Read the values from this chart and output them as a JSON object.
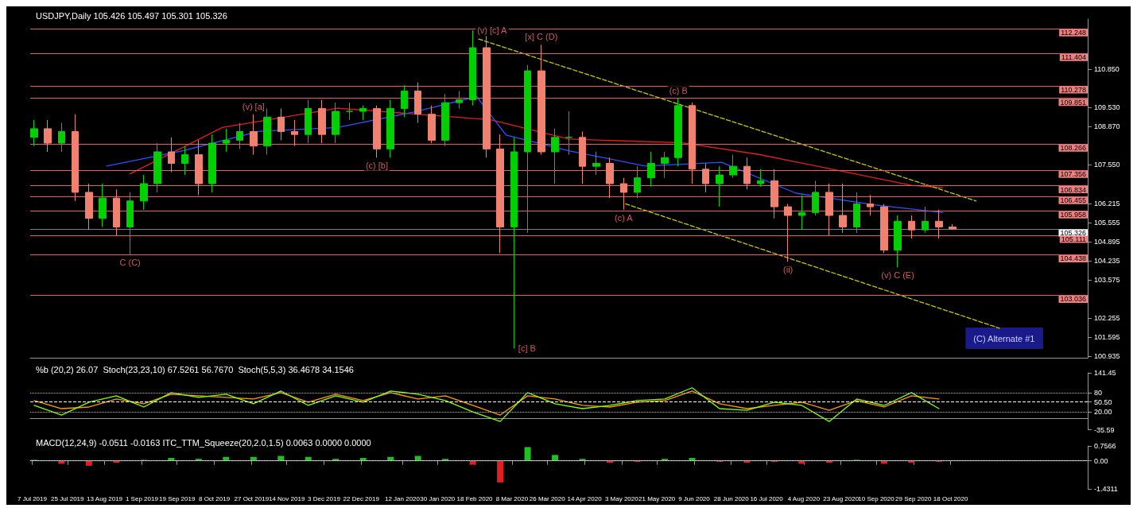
{
  "chart_data": [
    {
      "type": "candlestick",
      "title": "USDJPY,Daily 105.426 105.497 105.301 105.326",
      "x": [
        "2019-07-08",
        "2019-07-15",
        "2019-07-22",
        "2019-07-29",
        "2019-08-05",
        "2019-08-12",
        "2019-08-19",
        "2019-08-26",
        "2019-09-02",
        "2019-09-09",
        "2019-09-16",
        "2019-09-23",
        "2019-09-30",
        "2019-10-07",
        "2019-10-14",
        "2019-10-21",
        "2019-10-28",
        "2019-11-04",
        "2019-11-11",
        "2019-11-18",
        "2019-11-25",
        "2019-12-02",
        "2019-12-09",
        "2019-12-16",
        "2019-12-23",
        "2019-12-30",
        "2020-01-06",
        "2020-01-13",
        "2020-01-20",
        "2020-01-27",
        "2020-02-03",
        "2020-02-10",
        "2020-02-17",
        "2020-02-24",
        "2020-03-02",
        "2020-03-09",
        "2020-03-16",
        "2020-03-23",
        "2020-03-30",
        "2020-04-06",
        "2020-04-13",
        "2020-04-20",
        "2020-04-27",
        "2020-05-04",
        "2020-05-11",
        "2020-05-18",
        "2020-05-25",
        "2020-06-01",
        "2020-06-08",
        "2020-06-15",
        "2020-06-22",
        "2020-06-29",
        "2020-07-06",
        "2020-07-13",
        "2020-07-20",
        "2020-07-27",
        "2020-08-03",
        "2020-08-10",
        "2020-08-17",
        "2020-08-24",
        "2020-08-31",
        "2020-09-07",
        "2020-09-14",
        "2020-09-21",
        "2020-09-28",
        "2020-10-05",
        "2020-10-12",
        "2020-10-19"
      ],
      "ohlc": [
        [
          108.5,
          109.1,
          108.2,
          108.8
        ],
        [
          108.8,
          109.1,
          108.0,
          108.3
        ],
        [
          108.3,
          109.0,
          108.0,
          108.7
        ],
        [
          108.7,
          109.3,
          106.3,
          106.6
        ],
        [
          106.6,
          106.9,
          105.3,
          105.7
        ],
        [
          105.7,
          106.9,
          105.4,
          106.4
        ],
        [
          106.4,
          106.7,
          105.1,
          105.4
        ],
        [
          105.4,
          106.6,
          104.45,
          106.3
        ],
        [
          106.3,
          107.2,
          106.0,
          106.9
        ],
        [
          106.9,
          108.3,
          106.6,
          108.0
        ],
        [
          108.0,
          108.5,
          107.3,
          107.6
        ],
        [
          107.6,
          108.2,
          107.2,
          107.9
        ],
        [
          107.9,
          108.4,
          106.5,
          106.9
        ],
        [
          106.9,
          108.6,
          106.6,
          108.3
        ],
        [
          108.3,
          108.8,
          108.0,
          108.4
        ],
        [
          108.4,
          109.0,
          108.1,
          108.7
        ],
        [
          108.7,
          109.3,
          107.9,
          108.2
        ],
        [
          108.2,
          109.5,
          107.9,
          109.2
        ],
        [
          109.2,
          109.5,
          108.4,
          108.7
        ],
        [
          108.7,
          109.1,
          108.2,
          108.6
        ],
        [
          108.6,
          109.8,
          108.3,
          109.5
        ],
        [
          109.5,
          109.8,
          108.3,
          108.6
        ],
        [
          108.6,
          109.7,
          108.3,
          109.4
        ],
        [
          109.4,
          109.7,
          109.1,
          109.4
        ],
        [
          109.4,
          109.6,
          109.1,
          109.5
        ],
        [
          109.5,
          109.6,
          107.8,
          108.1
        ],
        [
          108.1,
          109.8,
          107.8,
          109.5
        ],
        [
          109.5,
          110.3,
          109.2,
          110.1
        ],
        [
          110.1,
          110.4,
          109.0,
          109.3
        ],
        [
          109.3,
          109.6,
          108.3,
          108.4
        ],
        [
          108.4,
          110.0,
          108.2,
          109.7
        ],
        [
          109.7,
          110.1,
          109.5,
          109.8
        ],
        [
          109.8,
          112.2,
          109.6,
          111.6
        ],
        [
          111.6,
          112.0,
          107.8,
          108.1
        ],
        [
          108.1,
          108.6,
          104.5,
          105.4
        ],
        [
          105.4,
          108.5,
          101.2,
          108.0
        ],
        [
          108.0,
          111.0,
          105.2,
          110.8
        ],
        [
          110.8,
          111.7,
          107.9,
          108.0
        ],
        [
          108.0,
          108.8,
          106.9,
          108.5
        ],
        [
          108.5,
          109.4,
          107.9,
          108.5
        ],
        [
          108.5,
          108.7,
          106.9,
          107.5
        ],
        [
          107.5,
          108.0,
          107.2,
          107.6
        ],
        [
          107.6,
          107.8,
          106.4,
          106.9
        ],
        [
          106.9,
          107.1,
          106.0,
          106.6
        ],
        [
          106.6,
          107.5,
          106.4,
          107.1
        ],
        [
          107.1,
          108.0,
          106.8,
          107.6
        ],
        [
          107.6,
          108.0,
          107.1,
          107.8
        ],
        [
          107.8,
          109.85,
          107.5,
          109.6
        ],
        [
          109.6,
          109.7,
          106.9,
          107.4
        ],
        [
          107.4,
          107.6,
          106.6,
          106.9
        ],
        [
          106.9,
          107.5,
          106.1,
          107.2
        ],
        [
          107.2,
          107.9,
          107.1,
          107.5
        ],
        [
          107.5,
          107.8,
          106.7,
          106.9
        ],
        [
          106.9,
          107.4,
          106.8,
          107.0
        ],
        [
          107.0,
          107.4,
          105.7,
          106.1
        ],
        [
          106.1,
          106.2,
          104.2,
          105.8
        ],
        [
          105.8,
          106.5,
          105.3,
          105.9
        ],
        [
          105.9,
          107.0,
          105.8,
          106.6
        ],
        [
          106.6,
          106.9,
          105.1,
          105.8
        ],
        [
          105.8,
          106.9,
          105.2,
          105.4
        ],
        [
          105.4,
          106.6,
          105.2,
          106.2
        ],
        [
          106.2,
          106.5,
          105.8,
          106.1
        ],
        [
          106.1,
          106.2,
          104.5,
          104.6
        ],
        [
          104.6,
          105.8,
          104.0,
          105.6
        ],
        [
          105.6,
          105.8,
          105.0,
          105.3
        ],
        [
          105.3,
          106.1,
          105.2,
          105.6
        ],
        [
          105.6,
          106.0,
          105.0,
          105.4
        ],
        [
          105.4,
          105.5,
          105.3,
          105.33
        ]
      ],
      "series": [
        {
          "type": "line",
          "color": "#e02020",
          "x": [
            "2019-08-26",
            "2019-10-12",
            "2019-12-10",
            "2020-02-26",
            "2020-04-06",
            "2020-06-03",
            "2020-07-12",
            "2020-08-20",
            "2020-09-28",
            "2020-10-14"
          ],
          "values": [
            107.24,
            108.84,
            109.51,
            109.11,
            108.44,
            108.31,
            107.91,
            107.38,
            106.84,
            106.76
          ]
        },
        {
          "type": "line",
          "color": "#3050ff",
          "x": [
            "2019-08-14",
            "2019-09-22",
            "2019-10-31",
            "2019-12-10",
            "2020-01-18",
            "2020-02-19",
            "2020-03-05",
            "2020-04-06",
            "2020-05-15",
            "2020-06-23",
            "2020-07-31",
            "2020-09-09",
            "2020-10-14"
          ],
          "values": [
            107.51,
            108.04,
            108.71,
            108.84,
            109.38,
            109.91,
            108.58,
            108.04,
            107.51,
            107.64,
            106.57,
            106.17,
            105.9
          ]
        },
        {
          "type": "line",
          "color": "#c8c800",
          "line_style": "dashed",
          "x": [
            "2020-02-20",
            "2020-10-31"
          ],
          "values": [
            111.9,
            106.3
          ]
        },
        {
          "type": "line",
          "color": "#c8c800",
          "line_style": "dashed",
          "x": [
            "2020-05-05",
            "2020-11-12"
          ],
          "values": [
            106.2,
            101.9
          ]
        }
      ],
      "xlim": [
        "2019-07-06",
        "2020-12-27"
      ],
      "ylim": [
        100.88,
        112.59
      ],
      "yticks": [
        {
          "value": 110.85,
          "label": "110.850"
        },
        {
          "value": 109.53,
          "label": "109.530"
        },
        {
          "value": 108.87,
          "label": "108.870"
        },
        {
          "value": 107.55,
          "label": "107.550"
        },
        106.215,
        105.555,
        104.895,
        104.235,
        103.575,
        102.255,
        101.595,
        100.935
      ],
      "ref_lines": [
        {
          "axis": "y",
          "value": 112.248,
          "label": "112.248",
          "color": "#e06060"
        },
        {
          "axis": "y",
          "value": 111.404,
          "label": "111.404",
          "color": "#e06060"
        },
        {
          "axis": "y",
          "value": 110.278,
          "label": "110.278",
          "color": "#e06060"
        },
        {
          "axis": "y",
          "value": 109.851,
          "label": "109.851",
          "color": "#e06060"
        },
        {
          "axis": "y",
          "value": 108.266,
          "label": "108.266",
          "color": "#e06060"
        },
        {
          "axis": "y",
          "value": 107.356,
          "label": "107.356",
          "color": "#e06060"
        },
        {
          "axis": "y",
          "value": 106.834,
          "label": "106.834",
          "color": "#e06060"
        },
        {
          "axis": "y",
          "value": 106.455,
          "label": "106.455",
          "color": "#e06060"
        },
        {
          "axis": "y",
          "value": 105.958,
          "label": "105.958",
          "color": "#e06060"
        },
        {
          "axis": "y",
          "value": 105.326,
          "label": "105.326",
          "color": "#708090"
        },
        {
          "axis": "y",
          "value": 105.111,
          "label": "105.111",
          "color": "#e06060"
        },
        {
          "axis": "y",
          "value": 104.438,
          "label": "104.438",
          "color": "#e06060"
        },
        {
          "axis": "y",
          "value": 103.036,
          "label": "103.036",
          "color": "#e06060"
        }
      ],
      "annotations": [
        {
          "text": "C (C)",
          "x": "2019-08-26",
          "y": 104.45
        },
        {
          "text": "(v) [a]",
          "x": "2019-10-28",
          "y": 109.3
        },
        {
          "text": "(c) [b]",
          "x": "2019-12-30",
          "y": 107.8
        },
        {
          "text": "(v) [c] A",
          "x": "2020-02-17",
          "y": 112.2
        },
        {
          "text": "[c] B",
          "x": "2020-03-09",
          "y": 101.2
        },
        {
          "text": "[x] C (D)",
          "x": "2020-03-23",
          "y": 111.7
        },
        {
          "text": "(c) A",
          "x": "2020-05-04",
          "y": 106.0
        },
        {
          "text": "(c) B",
          "x": "2020-06-01",
          "y": 109.85
        },
        {
          "text": "(ii)",
          "x": "2020-07-27",
          "y": 104.2
        },
        {
          "text": "(v) C (E)",
          "x": "2020-09-21",
          "y": 104.0
        },
        "(C) Alternate #1"
      ],
      "tick_labels": "y"
    },
    {
      "type": "line",
      "title": "%b (20,2) 26.07  Stoch(23,23,10) 67.5261 56.7670  Stoch(5,5,3) 36.4678 34.1546",
      "x": [
        "2019-07-08",
        "2019-07-22",
        "2019-08-05",
        "2019-08-19",
        "2019-09-02",
        "2019-09-16",
        "2019-09-30",
        "2019-10-14",
        "2019-10-28",
        "2019-11-11",
        "2019-11-25",
        "2019-12-09",
        "2019-12-23",
        "2020-01-06",
        "2020-01-20",
        "2020-02-03",
        "2020-02-17",
        "2020-03-02",
        "2020-03-16",
        "2020-03-30",
        "2020-04-13",
        "2020-04-27",
        "2020-05-11",
        "2020-05-25",
        "2020-06-08",
        "2020-06-22",
        "2020-07-06",
        "2020-07-20",
        "2020-08-03",
        "2020-08-17",
        "2020-08-31",
        "2020-09-14",
        "2020-09-28",
        "2020-10-12"
      ],
      "series": [
        {
          "color": "#ff9900",
          "values": [
            55,
            30,
            35,
            60,
            45,
            75,
            70,
            65,
            60,
            80,
            50,
            75,
            55,
            80,
            60,
            70,
            40,
            10,
            70,
            60,
            40,
            35,
            50,
            55,
            85,
            45,
            30,
            40,
            50,
            25,
            55,
            35,
            70,
            60
          ]
        },
        {
          "color": "#80ff00",
          "values": [
            40,
            10,
            50,
            70,
            35,
            80,
            65,
            75,
            45,
            85,
            40,
            70,
            50,
            85,
            75,
            55,
            20,
            -10,
            80,
            45,
            30,
            40,
            55,
            60,
            95,
            30,
            25,
            50,
            40,
            -10,
            60,
            40,
            80,
            30
          ]
        }
      ],
      "xlim": [
        "2019-07-06",
        "2020-12-27"
      ],
      "ylim": [
        -35.59,
        141.45
      ],
      "yticks": [
        141.45,
        80,
        {
          "value": 50.5,
          "label": "50.50"
        },
        {
          "value": 20,
          "label": "20.00"
        },
        -35.59
      ],
      "ref_lines": [
        {
          "axis": "y",
          "value": 80,
          "color": "#bbbbbb",
          "line_style": "dotted"
        },
        {
          "axis": "y",
          "value": 50.5,
          "color": "#ffffff",
          "line_style": "dashed"
        },
        {
          "axis": "y",
          "value": 20,
          "color": "#bbbbbb",
          "line_style": "dotted"
        }
      ],
      "tick_labels": "y"
    },
    {
      "type": "bar",
      "title": "MACD(12,24,9) -0.0511 -0.0163 ITC_TTM_Squeeze(20,2.0,1.5) 0.0063 0.0000 0.0000",
      "x": [
        "2019-07-08",
        "2019-07-22",
        "2019-08-05",
        "2019-08-19",
        "2019-09-02",
        "2019-09-16",
        "2019-09-30",
        "2019-10-14",
        "2019-10-28",
        "2019-11-11",
        "2019-11-25",
        "2019-12-09",
        "2019-12-23",
        "2020-01-06",
        "2020-01-20",
        "2020-02-03",
        "2020-02-17",
        "2020-03-02",
        "2020-03-16",
        "2020-03-30",
        "2020-04-13",
        "2020-04-27",
        "2020-05-11",
        "2020-05-25",
        "2020-06-08",
        "2020-06-22",
        "2020-07-06",
        "2020-07-20",
        "2020-08-03",
        "2020-08-17",
        "2020-08-31",
        "2020-09-14",
        "2020-09-28",
        "2020-10-12"
      ],
      "values": [
        0.05,
        -0.15,
        -0.25,
        -0.1,
        0.05,
        0.15,
        0.1,
        0.2,
        0.2,
        0.25,
        0.2,
        0.1,
        0.15,
        0.2,
        0.25,
        0.1,
        -0.2,
        -1.1,
        0.7,
        0.3,
        0.1,
        -0.1,
        -0.05,
        0.1,
        0.15,
        -0.05,
        -0.1,
        -0.05,
        -0.15,
        -0.1,
        0.05,
        -0.15,
        -0.1,
        -0.05
      ],
      "colors": [
        "#20c020",
        "#e02020",
        "#e02020",
        "#e02020",
        "#20c020",
        "#20c020",
        "#20c020",
        "#20c020",
        "#20c020",
        "#20c020",
        "#20c020",
        "#20c020",
        "#20c020",
        "#20c020",
        "#20c020",
        "#20c020",
        "#e02020",
        "#e02020",
        "#20c020",
        "#20c020",
        "#20c020",
        "#e02020",
        "#e02020",
        "#20c020",
        "#20c020",
        "#e02020",
        "#e02020",
        "#e02020",
        "#e02020",
        "#e02020",
        "#20c020",
        "#e02020",
        "#e02020",
        "#e02020"
      ],
      "xlim": [
        "2019-07-06",
        "2020-12-27"
      ],
      "ylim": [
        -1.4311,
        0.7566
      ],
      "yticks": [
        0.7566,
        {
          "value": 0,
          "label": "0.00"
        },
        -1.4311
      ],
      "xticks": [
        {
          "value": "2019-07-07",
          "label": "7 Jul 2019"
        },
        {
          "value": "2019-07-25",
          "label": "25 Jul 2019"
        },
        {
          "value": "2019-08-13",
          "label": "13 Aug 2019"
        },
        {
          "value": "2019-09-01",
          "label": "1 Sep 2019"
        },
        {
          "value": "2019-09-19",
          "label": "19 Sep 2019"
        },
        {
          "value": "2019-10-08",
          "label": "8 Oct 2019"
        },
        {
          "value": "2019-10-27",
          "label": "27 Oct 2019"
        },
        {
          "value": "2019-11-14",
          "label": "14 Nov 2019"
        },
        {
          "value": "2019-12-03",
          "label": "3 Dec 2019"
        },
        {
          "value": "2019-12-22",
          "label": "22 Dec 2019"
        },
        {
          "value": "2020-01-12",
          "label": "12 Jan 2020"
        },
        {
          "value": "2020-01-30",
          "label": "30 Jan 2020"
        },
        {
          "value": "2020-02-18",
          "label": "18 Feb 2020"
        },
        {
          "value": "2020-03-08",
          "label": "8 Mar 2020"
        },
        {
          "value": "2020-03-26",
          "label": "26 Mar 2020"
        },
        {
          "value": "2020-04-14",
          "label": "14 Apr 2020"
        },
        {
          "value": "2020-05-03",
          "label": "3 May 2020"
        },
        {
          "value": "2020-05-21",
          "label": "21 May 2020"
        },
        {
          "value": "2020-06-09",
          "label": "9 Jun 2020"
        },
        {
          "value": "2020-06-28",
          "label": "28 Jun 2020"
        },
        {
          "value": "2020-07-16",
          "label": "16 Jul 2020"
        },
        {
          "value": "2020-08-04",
          "label": "4 Aug 2020"
        },
        {
          "value": "2020-08-23",
          "label": "23 Aug 2020"
        },
        {
          "value": "2020-09-10",
          "label": "10 Sep 2020"
        },
        {
          "value": "2020-09-29",
          "label": "29 Sep 2020"
        },
        {
          "value": "2020-10-18",
          "label": "18 Oct 2020"
        }
      ],
      "ref_lines": [
        {
          "axis": "y",
          "value": 0,
          "color": "#ffffff",
          "line_style": "dotted"
        }
      ]
    }
  ]
}
